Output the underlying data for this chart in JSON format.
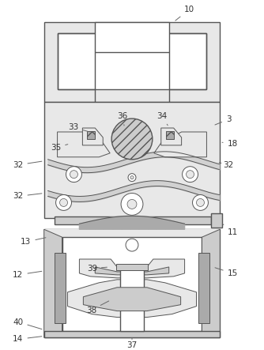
{
  "white": "#ffffff",
  "bg": "#e8e8e8",
  "lc": "#555555",
  "gray1": "#cccccc",
  "gray2": "#aaaaaa",
  "gray3": "#888888"
}
